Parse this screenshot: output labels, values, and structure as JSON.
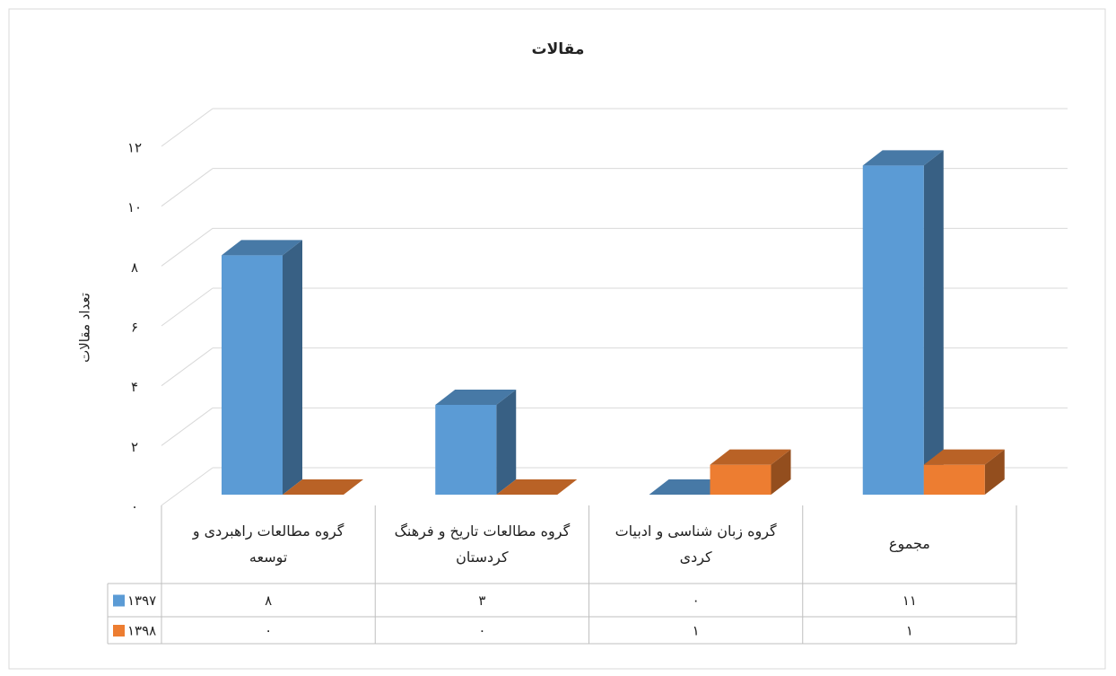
{
  "chart_data": {
    "type": "bar3d",
    "title": "مقالات",
    "y_label": "تعداد مقالات",
    "categories": [
      "گروه مطالعات راهبردی و توسعه",
      "گروه مطالعات تاریخ و فرهنگ کردستان",
      "گروه زبان شناسی و ادبیات کردی",
      "مجموع"
    ],
    "series": [
      {
        "name": "۱۳۹۷",
        "color": "#5b9bd5",
        "values": [
          8,
          3,
          0,
          11
        ],
        "value_labels": [
          "۸",
          "۳",
          "۰",
          "۱۱"
        ]
      },
      {
        "name": "۱۳۹۸",
        "color": "#ed7d31",
        "values": [
          0,
          0,
          1,
          1
        ],
        "value_labels": [
          "۰",
          "۰",
          "۱",
          "۱"
        ]
      }
    ],
    "ylim": [
      0,
      12
    ],
    "yticks": [
      {
        "value": 0,
        "label": "۰"
      },
      {
        "value": 2,
        "label": "۲"
      },
      {
        "value": 4,
        "label": "۴"
      },
      {
        "value": 6,
        "label": "۶"
      },
      {
        "value": 8,
        "label": "۸"
      },
      {
        "value": 10,
        "label": "۱۰"
      },
      {
        "value": 12,
        "label": "۱۲"
      }
    ],
    "grid": true,
    "data_table": true
  }
}
